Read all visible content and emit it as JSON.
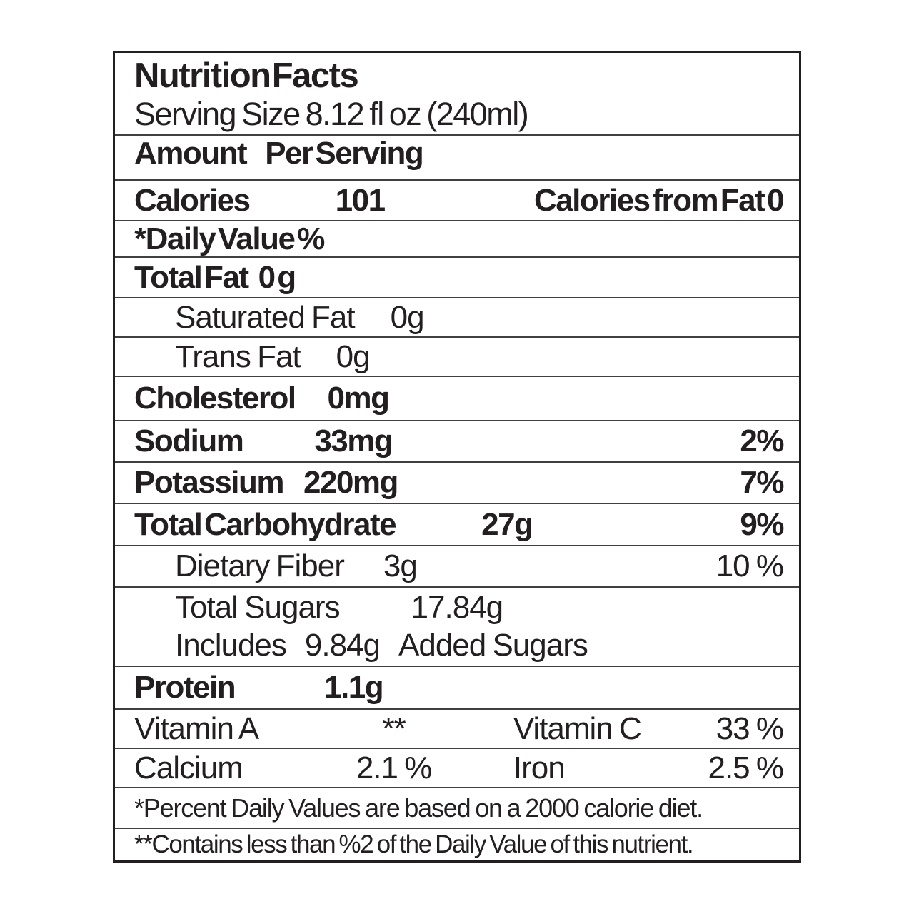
{
  "label": {
    "title": "Nutrition Facts",
    "serving_size": "Serving Size 8.12 fl oz (240ml)",
    "amount_per_serving": {
      "amount": "Amount",
      "per_serving": "Per Serving"
    },
    "calories": {
      "label": "Calories",
      "value": "101",
      "right": "Calories from Fat 0"
    },
    "daily_value_header": "*Daily Value %",
    "nutrients": {
      "total_fat": {
        "label": "Total Fat",
        "amount": "0 g"
      },
      "saturated_fat": {
        "label": "Saturated Fat",
        "amount": "0g"
      },
      "trans_fat": {
        "label": "Trans Fat",
        "amount": "0g"
      },
      "cholesterol": {
        "label": "Cholesterol",
        "amount": "0mg"
      },
      "sodium": {
        "label": "Sodium",
        "amount": "33mg",
        "dv": "2%"
      },
      "potassium": {
        "label": "Potassium",
        "amount": "220mg",
        "dv": "7%"
      },
      "total_carbohydrate": {
        "label": "Total Carbohydrate",
        "amount": "27g",
        "dv": "9%"
      },
      "dietary_fiber": {
        "label": "Dietary Fiber",
        "amount": "3g",
        "dv": "10 %"
      },
      "total_sugars": {
        "label": "Total Sugars",
        "amount": "17.84g"
      },
      "added_sugars": {
        "includes": "Includes",
        "amount": "9.84g",
        "text": "Added Sugars"
      },
      "protein": {
        "label": "Protein",
        "amount": "1.1g"
      }
    },
    "micronutrients": {
      "vitamin_a": {
        "label": "Vitamin A",
        "value": "**"
      },
      "vitamin_c": {
        "label": "Vitamin C",
        "value": "33 %"
      },
      "calcium": {
        "label": "Calcium",
        "value": "2.1 %"
      },
      "iron": {
        "label": "Iron",
        "value": "2.5 %"
      }
    },
    "footnotes": {
      "daily_values": "*Percent Daily Values are based on a 2000 calorie diet.",
      "contains_less": "**Contains less than %2 of the Daily Value of this nutrient."
    },
    "colors": {
      "text": "#231f20",
      "outer_border": "#231f20",
      "divider": "#404040",
      "background": "#ffffff"
    }
  }
}
